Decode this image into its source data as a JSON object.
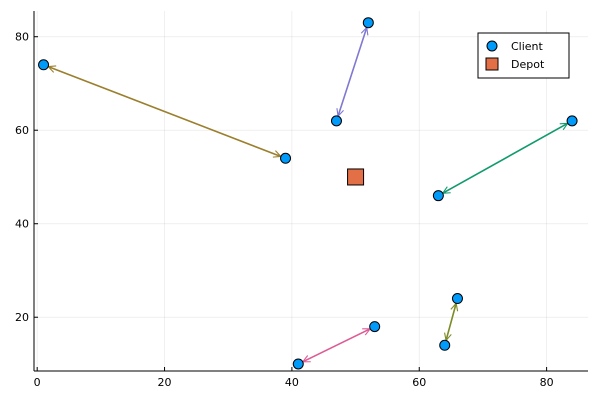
{
  "chart_data": {
    "type": "scatter",
    "title": "",
    "xlabel": "",
    "ylabel": "",
    "xlim": [
      -0.5,
      86.5
    ],
    "ylim": [
      8.5,
      85.5
    ],
    "x_ticks": [
      0,
      20,
      40,
      60,
      80
    ],
    "y_ticks": [
      20,
      40,
      60,
      80
    ],
    "grid": true,
    "legend_position": "top-right",
    "series": [
      {
        "name": "Client",
        "marker": "circle",
        "color": "#009AFA",
        "points": [
          {
            "x": 1,
            "y": 74
          },
          {
            "x": 39,
            "y": 54
          },
          {
            "x": 47,
            "y": 62
          },
          {
            "x": 52,
            "y": 83
          },
          {
            "x": 63,
            "y": 46
          },
          {
            "x": 84,
            "y": 62
          },
          {
            "x": 41,
            "y": 10
          },
          {
            "x": 53,
            "y": 18
          },
          {
            "x": 64,
            "y": 14
          },
          {
            "x": 66,
            "y": 24
          }
        ]
      },
      {
        "name": "Depot",
        "marker": "square",
        "color": "#E26F46",
        "points": [
          {
            "x": 50,
            "y": 50
          }
        ]
      }
    ],
    "routes": [
      {
        "color": "#9B7F2D",
        "from": {
          "x": 39,
          "y": 54
        },
        "to": {
          "x": 1,
          "y": 74
        },
        "bidirectional": true
      },
      {
        "color": "#7F79D1",
        "from": {
          "x": 47,
          "y": 62
        },
        "to": {
          "x": 52,
          "y": 83
        },
        "bidirectional": true
      },
      {
        "color": "#129A6F",
        "from": {
          "x": 84,
          "y": 62
        },
        "to": {
          "x": 63,
          "y": 46
        },
        "bidirectional": true
      },
      {
        "color": "#DD5B95",
        "from": {
          "x": 41,
          "y": 10
        },
        "to": {
          "x": 53,
          "y": 18
        },
        "bidirectional": true
      },
      {
        "color": "#7D8A26",
        "from": {
          "x": 64,
          "y": 14
        },
        "to": {
          "x": 66,
          "y": 24
        },
        "bidirectional": true
      }
    ]
  }
}
